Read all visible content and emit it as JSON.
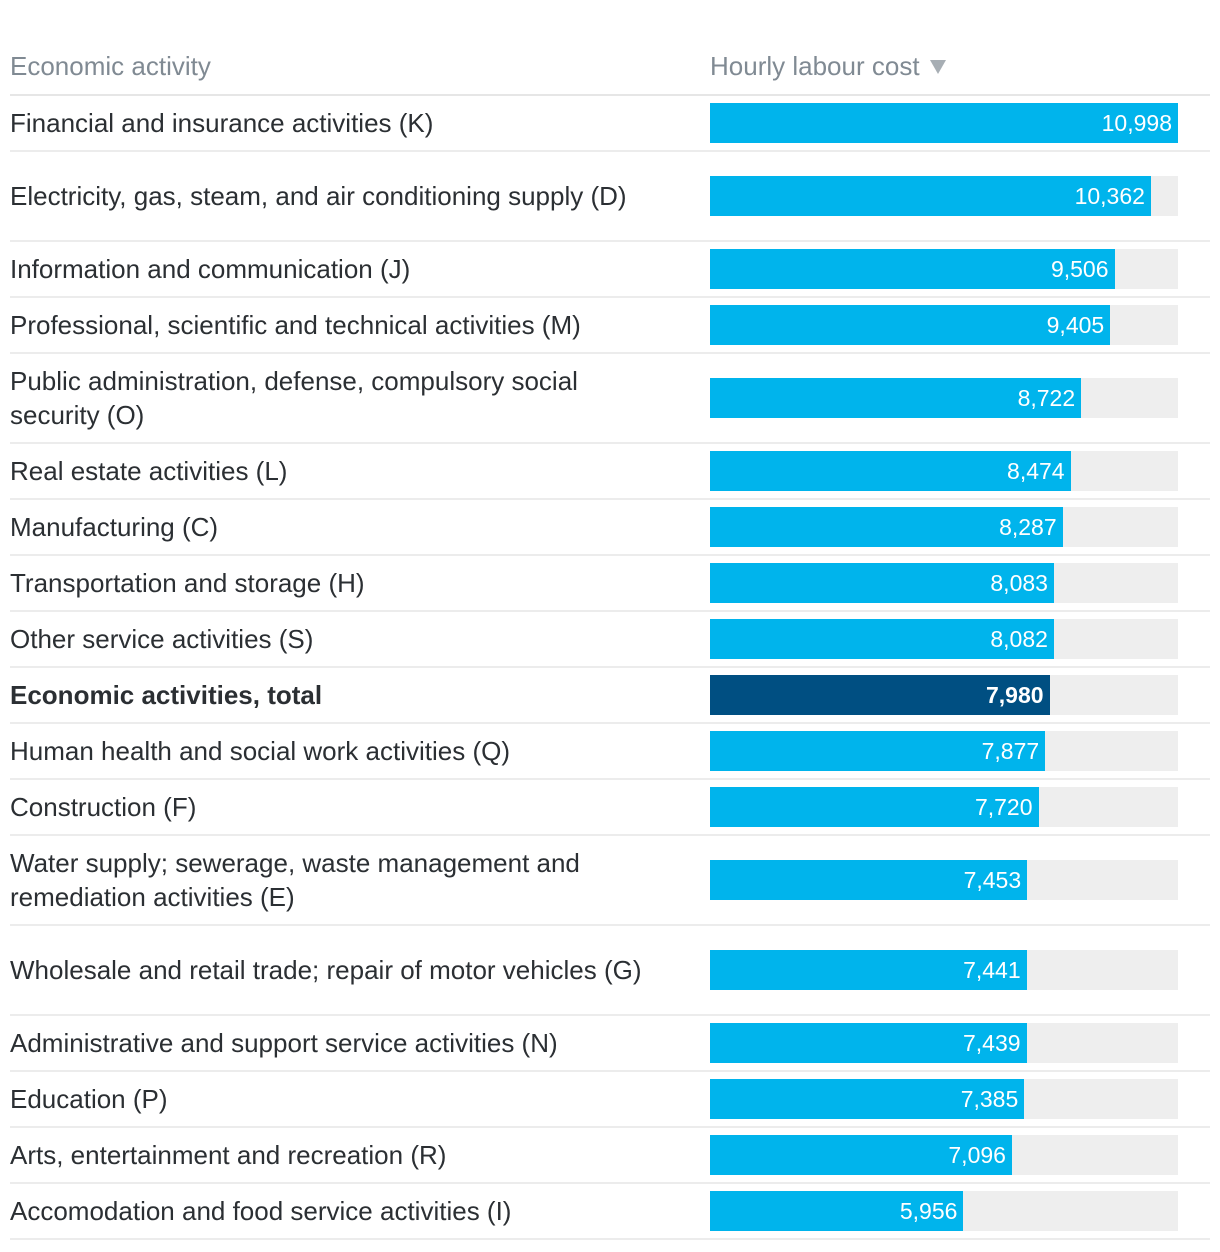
{
  "header": {
    "activity_label": "Economic activity",
    "cost_label": "Hourly labour cost"
  },
  "chart_data": {
    "type": "bar",
    "orientation": "horizontal",
    "title": "",
    "xlabel": "Hourly labour cost",
    "ylabel": "Economic activity",
    "xlim": [
      0,
      10998
    ],
    "colors": {
      "bar": "#00b4ec",
      "total_bar": "#004f82",
      "track": "#eeeeee"
    },
    "rows": [
      {
        "label": "Financial and insurance activities (K)",
        "value": 10998,
        "value_label": "10,998",
        "total": false
      },
      {
        "label": "Electricity, gas, steam, and air conditioning supply (D)",
        "value": 10362,
        "value_label": "10,362",
        "total": false
      },
      {
        "label": "Information and communication (J)",
        "value": 9506,
        "value_label": "9,506",
        "total": false
      },
      {
        "label": "Professional, scientific and technical activities (M)",
        "value": 9405,
        "value_label": "9,405",
        "total": false
      },
      {
        "label": "Public administration, defense, compulsory social security (O)",
        "value": 8722,
        "value_label": "8,722",
        "total": false
      },
      {
        "label": "Real estate activities (L)",
        "value": 8474,
        "value_label": "8,474",
        "total": false
      },
      {
        "label": "Manufacturing (C)",
        "value": 8287,
        "value_label": "8,287",
        "total": false
      },
      {
        "label": "Transportation and storage (H)",
        "value": 8083,
        "value_label": "8,083",
        "total": false
      },
      {
        "label": "Other service activities (S)",
        "value": 8082,
        "value_label": "8,082",
        "total": false
      },
      {
        "label": "Economic activities, total",
        "value": 7980,
        "value_label": "7,980",
        "total": true
      },
      {
        "label": "Human health and social work activities (Q)",
        "value": 7877,
        "value_label": "7,877",
        "total": false
      },
      {
        "label": "Construction (F)",
        "value": 7720,
        "value_label": "7,720",
        "total": false
      },
      {
        "label": "Water supply; sewerage, waste management and remediation activities (E)",
        "value": 7453,
        "value_label": "7,453",
        "total": false
      },
      {
        "label": "Wholesale and retail trade; repair of motor vehicles (G)",
        "value": 7441,
        "value_label": "7,441",
        "total": false
      },
      {
        "label": "Administrative and support service activities (N)",
        "value": 7439,
        "value_label": "7,439",
        "total": false
      },
      {
        "label": "Education (P)",
        "value": 7385,
        "value_label": "7,385",
        "total": false
      },
      {
        "label": "Arts, entertainment and recreation (R)",
        "value": 7096,
        "value_label": "7,096",
        "total": false
      },
      {
        "label": "Accomodation and food service activities (I)",
        "value": 5956,
        "value_label": "5,956",
        "total": false
      }
    ]
  }
}
